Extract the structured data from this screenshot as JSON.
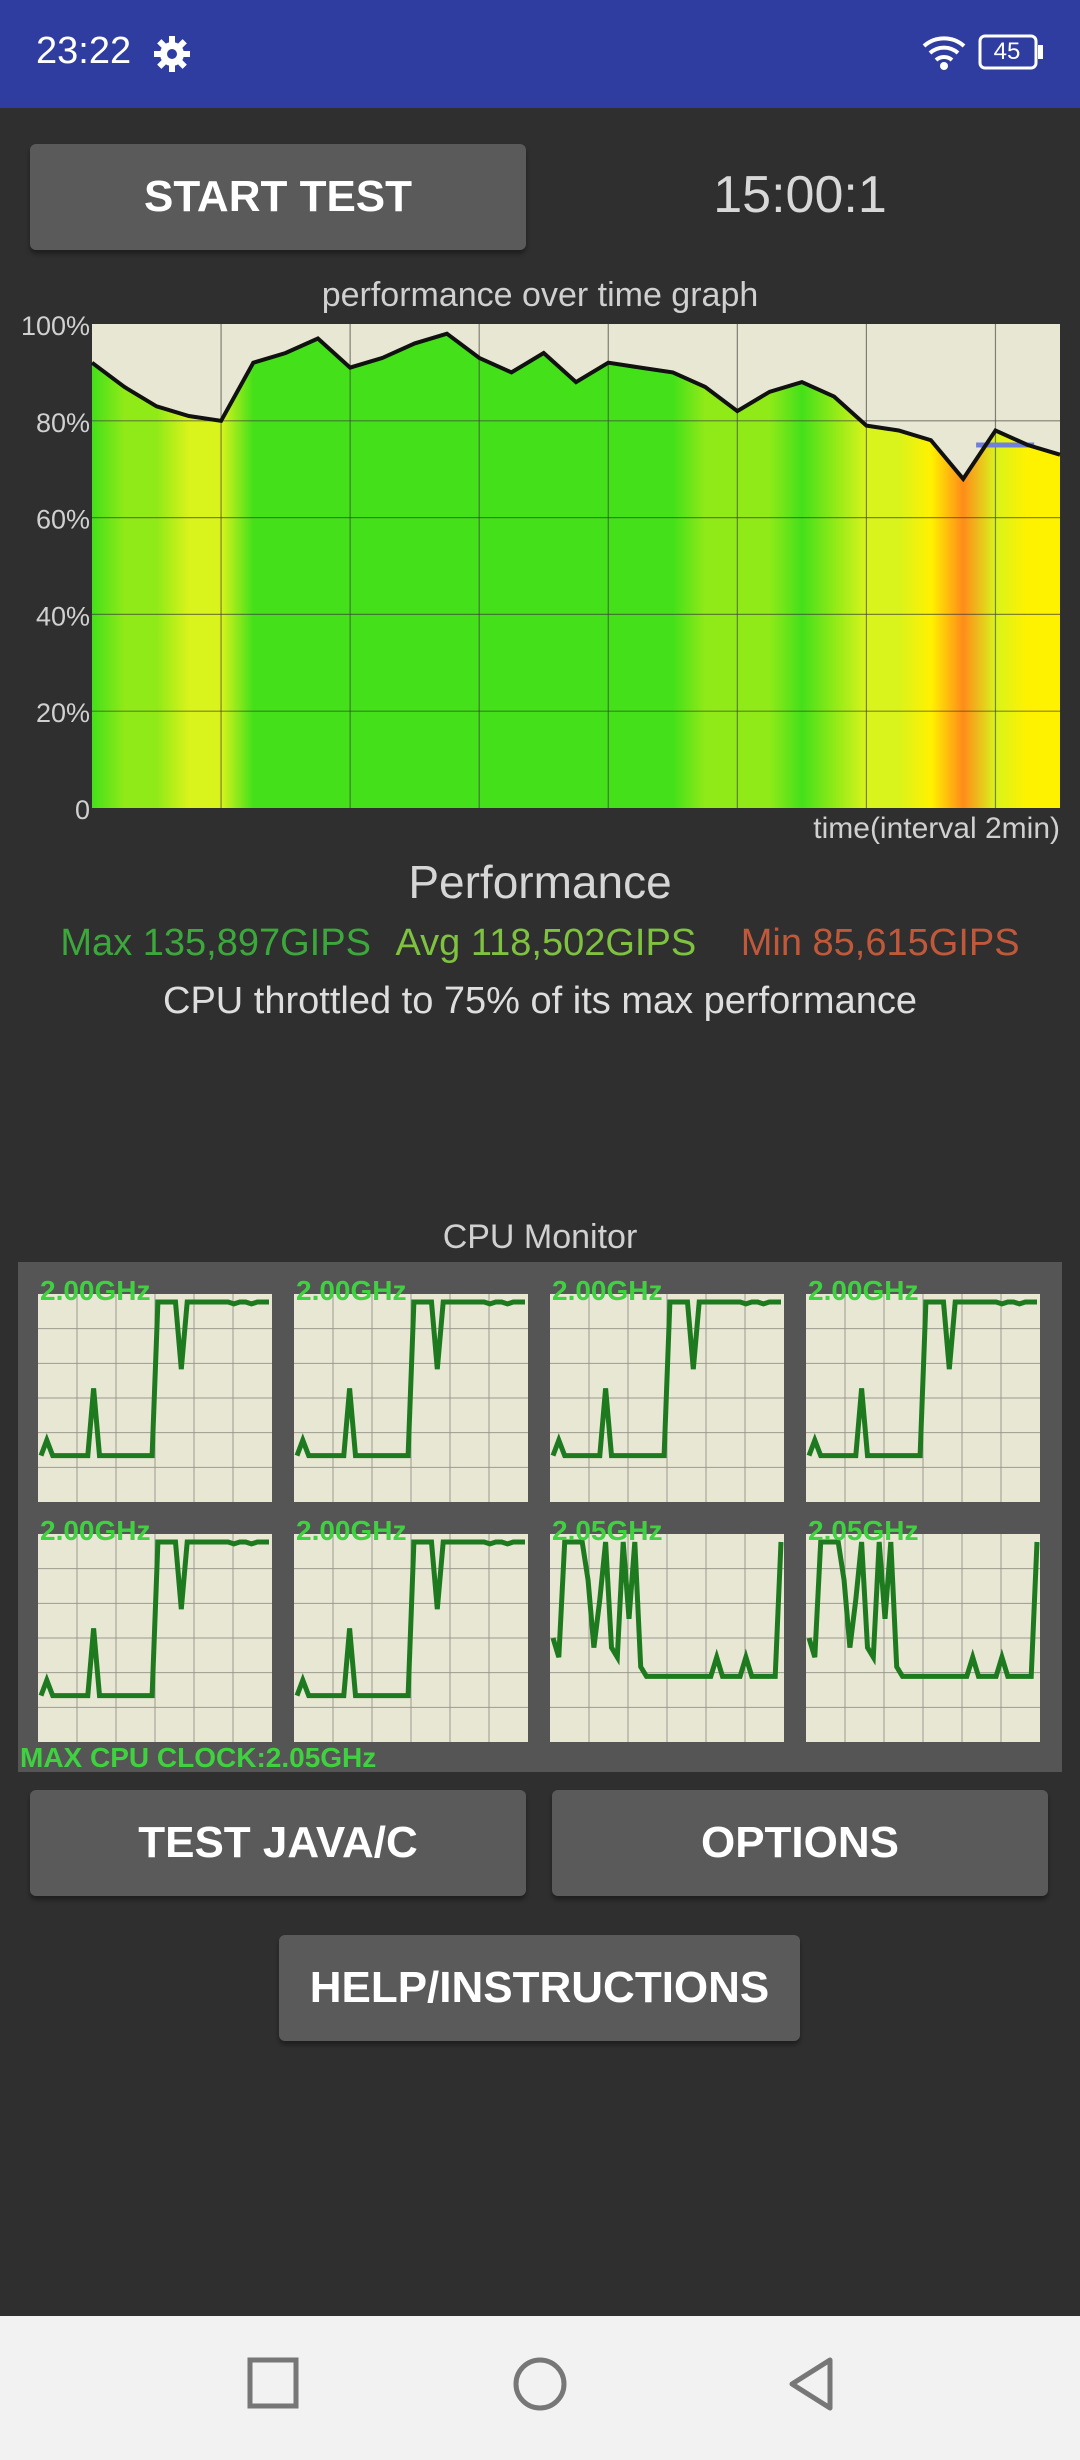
{
  "status_bar": {
    "time": "23:22",
    "battery_level": "45",
    "icons": [
      "gear-icon",
      "wifi-icon",
      "battery-icon"
    ]
  },
  "buttons": {
    "start_test": "START TEST",
    "test_java_c": "TEST JAVA/C",
    "options": "OPTIONS",
    "help": "HELP/INSTRUCTIONS"
  },
  "timer": "15:00:1",
  "graph": {
    "title": "performance over time graph",
    "time_label": "time(interval 2min)",
    "y_ticks": [
      "100%",
      "80%",
      "60%",
      "40%",
      "20%",
      "0"
    ]
  },
  "performance": {
    "title": "Performance",
    "max": "Max 135,897GIPS",
    "avg": "Avg 118,502GIPS",
    "min": "Min 85,615GIPS",
    "throttle_message": "CPU throttled to 75% of its max performance"
  },
  "cpu_monitor": {
    "title": "CPU Monitor",
    "cores": [
      "2.00GHz",
      "2.00GHz",
      "2.00GHz",
      "2.00GHz",
      "2.00GHz",
      "2.00GHz",
      "2.05GHz",
      "2.05GHz"
    ],
    "max_clock": "MAX CPU CLOCK:2.05GHz"
  },
  "colors": {
    "status_bar": "#2e3d9f",
    "background": "#2f2f2f",
    "button": "#5a5a5a",
    "plot_background": "#e8e7d3",
    "core_line": "#1e7a1e",
    "max_text": "#3ca83c",
    "avg_text": "#7ec23f",
    "min_text": "#c0583a"
  },
  "chart_data": {
    "type": "area",
    "title": "performance over time graph",
    "xlabel": "time(interval 2min)",
    "ylabel": "",
    "ylim": [
      0,
      100
    ],
    "y_unit": "%",
    "x": [
      0,
      0.5,
      1,
      1.5,
      2,
      2.5,
      3,
      3.5,
      4,
      4.5,
      5,
      5.5,
      6,
      6.5,
      7,
      7.5,
      8,
      8.5,
      9,
      9.5,
      10,
      10.5,
      11,
      11.5,
      12,
      12.5,
      13,
      13.5,
      14,
      14.5,
      15
    ],
    "series": [
      {
        "values": [
          92,
          87,
          83,
          81,
          80,
          92,
          94,
          97,
          91,
          93,
          96,
          98,
          93,
          90,
          94,
          88,
          92,
          91,
          90,
          87,
          82,
          86,
          88,
          85,
          79,
          78,
          76,
          68,
          78,
          75,
          73
        ]
      }
    ],
    "reference_line": 75,
    "grid": true,
    "x_grid_interval": 2
  }
}
